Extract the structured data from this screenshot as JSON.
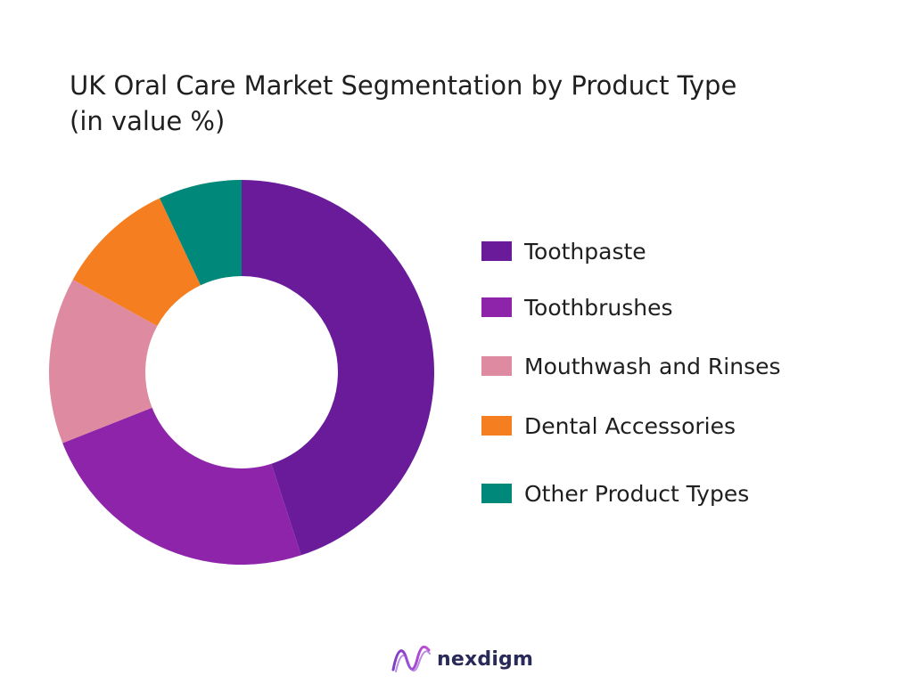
{
  "title_lines": [
    "UK Oral Care Market Segmentation by Product Type",
    "(in value %)"
  ],
  "chart_data": {
    "type": "pie",
    "donut": true,
    "series": [
      {
        "name": "Toothpaste",
        "value": 45,
        "color": "#6a1b9a"
      },
      {
        "name": "Toothbrushes",
        "value": 24,
        "color": "#8e24aa"
      },
      {
        "name": "Mouthwash and Rinses",
        "value": 14,
        "color": "#de8aa0"
      },
      {
        "name": "Dental Accessories",
        "value": 10,
        "color": "#f57f20"
      },
      {
        "name": "Other Product Types",
        "value": 7,
        "color": "#00897b"
      }
    ],
    "legend_position": "right"
  },
  "logo": {
    "text": "nexdigm",
    "icon": "nexdigm-wave-logo"
  }
}
